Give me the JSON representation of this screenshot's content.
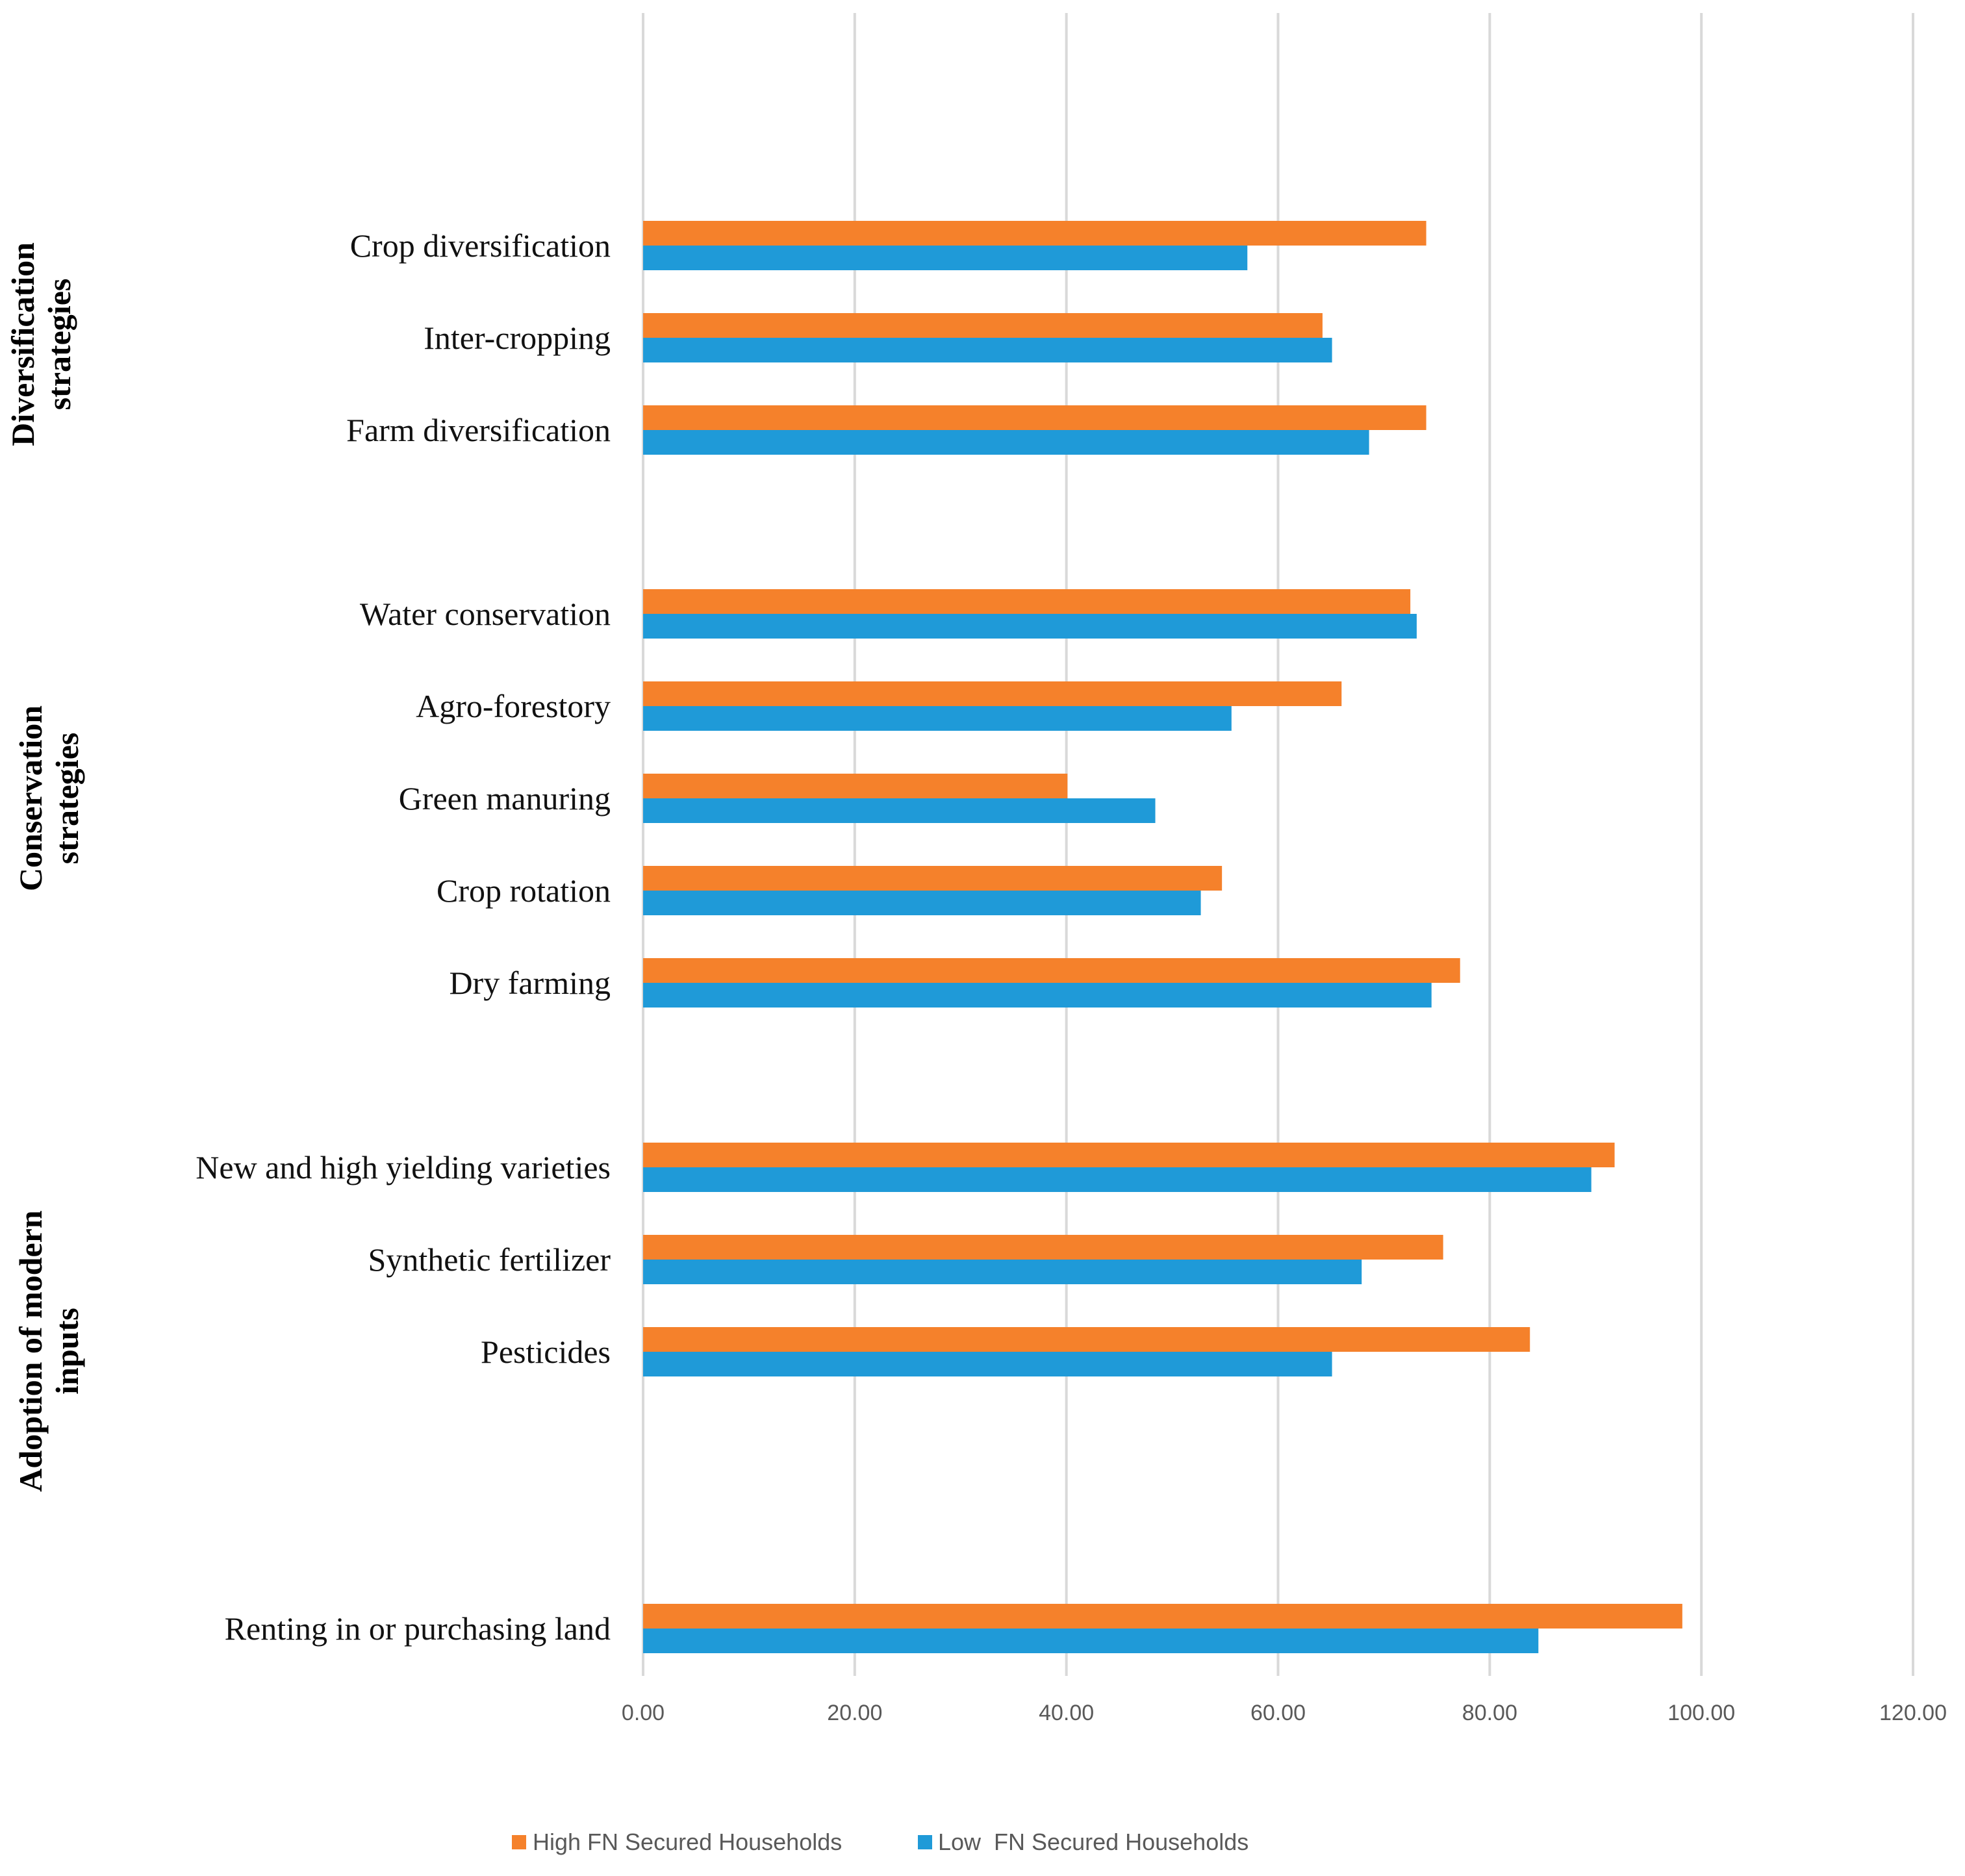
{
  "chart_data": {
    "type": "bar",
    "orientation": "horizontal",
    "title": "",
    "xlabel": "",
    "ylabel": "",
    "xlim": [
      0,
      120
    ],
    "xticks": [
      0,
      20,
      40,
      60,
      80,
      100,
      120
    ],
    "xtick_labels": [
      "0.00",
      "20.00",
      "40.00",
      "60.00",
      "80.00",
      "100.00",
      "120.00"
    ],
    "grid": "vertical",
    "legend_position": "bottom",
    "categories": [
      "Crop diversification",
      "Inter-cropping",
      "Farm diversification",
      "Water conservation",
      "Agro-forestory",
      "Green manuring",
      "Crop rotation",
      "Dry farming",
      "New and high yielding varieties",
      "Synthetic fertilizer",
      "Pesticides",
      "Renting in or purchasing land"
    ],
    "groups": [
      {
        "label": "Diversification strategies",
        "categories": [
          "Crop diversification",
          "Inter-cropping",
          "Farm diversification"
        ]
      },
      {
        "label": "Conservation strategies",
        "categories": [
          "Water conservation",
          "Agro-forestory",
          "Green manuring",
          "Crop rotation",
          "Dry farming"
        ]
      },
      {
        "label": "Adoption of modern inputs",
        "categories": [
          "New and high yielding varieties",
          "Synthetic fertilizer",
          "Pesticides"
        ]
      }
    ],
    "series": [
      {
        "name": "High FN Secured Households",
        "color": "#f5812b",
        "values": [
          74,
          64.2,
          74,
          72.5,
          66,
          40.1,
          54.7,
          77.2,
          91.8,
          75.6,
          83.8,
          98.2
        ]
      },
      {
        "name": "Low  FN Secured Households",
        "color": "#1f9ad8",
        "values": [
          57.1,
          65.1,
          68.6,
          73.1,
          55.6,
          48.4,
          52.7,
          74.5,
          89.6,
          67.9,
          65.1,
          84.6
        ]
      }
    ]
  }
}
